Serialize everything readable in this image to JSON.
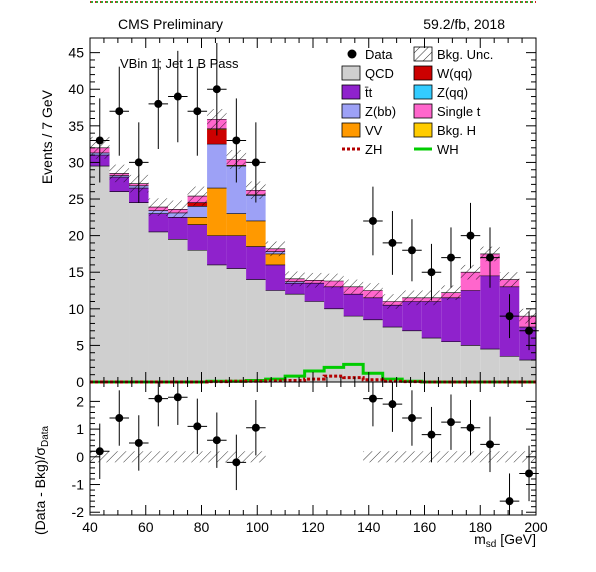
{
  "header": {
    "left_label": "CMS Preliminary",
    "right_label": "59.2/fb, 2018",
    "category_label": "VBin 1; Jet 1 B Pass"
  },
  "chart_data": [
    {
      "type": "histogram",
      "panel": "main",
      "ylabel": "Events / 7 GeV",
      "xlim": [
        40,
        200
      ],
      "ylim": [
        0,
        47
      ],
      "y_ticks": [
        0,
        5,
        10,
        15,
        20,
        25,
        30,
        35,
        40,
        45
      ],
      "x_ticks": [
        40,
        60,
        80,
        100,
        120,
        140,
        160,
        180,
        200
      ],
      "bin_edges": [
        40,
        47,
        54,
        61,
        68,
        75,
        82,
        89,
        96,
        103,
        110,
        117,
        124,
        131,
        138,
        145,
        152,
        159,
        166,
        173,
        180,
        187,
        194,
        201
      ],
      "legend": {
        "placement": "top-right",
        "entries": [
          {
            "key": "data",
            "label": "Data"
          },
          {
            "key": "unc",
            "label": "Bkg. Unc."
          },
          {
            "key": "qcd",
            "label": "QCD"
          },
          {
            "key": "wqq",
            "label": "W(qq)"
          },
          {
            "key": "tt",
            "label": "t̄t"
          },
          {
            "key": "zqq",
            "label": "Z(qq)"
          },
          {
            "key": "zbb",
            "label": "Z(bb)"
          },
          {
            "key": "singlet",
            "label": "Single t"
          },
          {
            "key": "vv",
            "label": "VV"
          },
          {
            "key": "bkgh",
            "label": "Bkg. H"
          },
          {
            "key": "zh",
            "label": "ZH"
          },
          {
            "key": "wh",
            "label": "WH"
          }
        ]
      },
      "colors": {
        "qcd": "#cfcfcf",
        "tt": "#8f22cc",
        "zbb": "#9da1f6",
        "vv": "#ff9900",
        "wqq": "#cc0000",
        "zqq": "#33ccff",
        "singlet": "#ff66cc",
        "bkgh": "#ffcc00",
        "zh": "#b30000",
        "wh": "#00cc00"
      },
      "stack_order": [
        "qcd",
        "tt",
        "vv",
        "zbb",
        "wqq",
        "zqq",
        "bkgh",
        "singlet"
      ],
      "series": {
        "qcd": [
          29.5,
          26.0,
          24.5,
          20.5,
          19.5,
          18.0,
          16.0,
          15.5,
          14.0,
          12.5,
          12.0,
          11.0,
          10.0,
          9.0,
          8.5,
          7.5,
          7.0,
          6.0,
          5.5,
          5.0,
          4.5,
          3.5,
          3.0
        ],
        "tt": [
          1.5,
          2.0,
          2.0,
          2.5,
          3.0,
          3.5,
          4.0,
          4.5,
          4.5,
          3.5,
          1.5,
          2.5,
          3.0,
          3.0,
          3.0,
          3.0,
          4.0,
          5.0,
          6.0,
          7.5,
          10.0,
          9.5,
          4.5
        ],
        "vv": [
          0.0,
          0.0,
          0.0,
          0.0,
          0.0,
          1.0,
          6.5,
          3.0,
          3.5,
          1.5,
          0.0,
          0.0,
          0.0,
          0.0,
          0.0,
          0.0,
          0.0,
          0.0,
          0.0,
          0.0,
          0.0,
          0.0,
          0.0
        ],
        "zbb": [
          0.3,
          0.2,
          0.3,
          0.4,
          0.6,
          1.5,
          6.0,
          6.5,
          3.5,
          0.3,
          0.2,
          0.0,
          0.0,
          0.0,
          0.0,
          0.0,
          0.0,
          0.0,
          0.0,
          0.0,
          0.0,
          0.0,
          0.0
        ],
        "wqq": [
          0.0,
          0.0,
          0.0,
          0.0,
          0.0,
          0.5,
          2.0,
          0.0,
          0.0,
          0.0,
          0.0,
          0.0,
          0.0,
          0.0,
          0.0,
          0.0,
          0.0,
          0.0,
          0.0,
          0.0,
          0.0,
          0.0,
          0.0
        ],
        "zqq": [
          0.0,
          0.0,
          0.0,
          0.0,
          0.0,
          0.0,
          0.0,
          0.0,
          0.0,
          0.0,
          0.0,
          0.0,
          0.0,
          0.0,
          0.0,
          0.0,
          0.0,
          0.0,
          0.0,
          0.0,
          0.0,
          0.0,
          0.0
        ],
        "bkgh": [
          0.0,
          0.0,
          0.0,
          0.0,
          0.0,
          0.0,
          0.1,
          0.1,
          0.1,
          0.0,
          0.0,
          0.0,
          0.0,
          0.0,
          0.0,
          0.0,
          0.0,
          0.0,
          0.0,
          0.0,
          0.0,
          0.0,
          0.0
        ],
        "singlet": [
          0.7,
          0.3,
          0.3,
          0.5,
          0.5,
          0.9,
          1.3,
          0.8,
          0.6,
          0.4,
          0.4,
          0.4,
          0.8,
          1.0,
          1.0,
          0.5,
          0.5,
          0.5,
          0.7,
          2.5,
          3.0,
          1.0,
          1.5
        ]
      },
      "unc_half_width": [
        1.5,
        1.2,
        1.2,
        1.2,
        1.2,
        1.3,
        1.4,
        1.3,
        1.2,
        1.0,
        1.0,
        1.0,
        1.0,
        1.0,
        1.0,
        1.0,
        1.0,
        1.0,
        1.0,
        1.0,
        1.0,
        1.0,
        1.0
      ],
      "zh": [
        0.0,
        0.0,
        0.0,
        0.0,
        0.0,
        0.0,
        0.05,
        0.1,
        0.1,
        0.15,
        0.2,
        0.4,
        0.8,
        0.6,
        0.3,
        0.1,
        0.05,
        0.0,
        0.0,
        0.0,
        0.0,
        0.0,
        0.0
      ],
      "wh": [
        0.0,
        0.0,
        0.0,
        0.0,
        0.0,
        0.0,
        0.1,
        0.1,
        0.2,
        0.4,
        0.8,
        1.5,
        2.0,
        2.4,
        1.2,
        0.4,
        0.1,
        0.0,
        0.0,
        0.0,
        0.0,
        0.0,
        0.0
      ],
      "data": {
        "x": [
          43.5,
          50.5,
          57.5,
          64.5,
          71.5,
          78.5,
          85.5,
          92.5,
          99.5,
          141.5,
          148.5,
          155.5,
          162.5,
          169.5,
          176.5,
          183.5,
          190.5,
          197.5
        ],
        "y": [
          33,
          37,
          30,
          38,
          39,
          37,
          40,
          33,
          30,
          22,
          19,
          18,
          15,
          17,
          20,
          17,
          9,
          7
        ]
      }
    },
    {
      "type": "scatter",
      "panel": "ratio",
      "ylabel_main": "(Data - Bkg)/",
      "ylabel_sigma": "σ",
      "ylabel_sub": "Data",
      "xlabel_main": "m",
      "xlabel_sub": "sd",
      "xlabel_unit": " [GeV]",
      "ylim": [
        -2.1,
        2.7
      ],
      "y_ticks": [
        -2,
        -1,
        0,
        1,
        2
      ],
      "x": [
        43.5,
        50.5,
        57.5,
        64.5,
        71.5,
        78.5,
        85.5,
        92.5,
        99.5,
        141.5,
        148.5,
        155.5,
        162.5,
        169.5,
        176.5,
        183.5,
        190.5,
        197.5
      ],
      "y": [
        0.2,
        1.4,
        0.5,
        2.1,
        2.15,
        1.1,
        0.6,
        -0.2,
        1.05,
        2.1,
        1.9,
        1.4,
        0.8,
        1.25,
        1.05,
        0.45,
        -1.6,
        -0.6
      ],
      "band_half_width": 0.2
    }
  ]
}
